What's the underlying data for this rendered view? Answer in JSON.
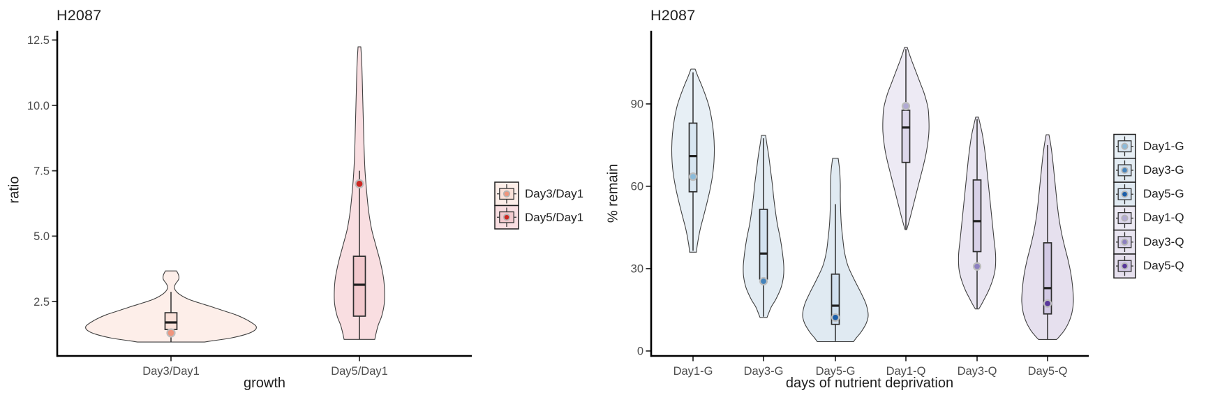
{
  "figure": {
    "background": "#ffffff",
    "axis_color": "#000000",
    "tick_color": "#333333",
    "tick_label_color": "#4d4d4d",
    "violin_stroke": "#3f3f3f",
    "box_stroke": "#2e2e2e",
    "dot_ring_color": "#bdbdbd"
  },
  "chart_data": [
    {
      "type": "violin",
      "title": "H2087",
      "xlabel": "growth",
      "ylabel": "ratio",
      "ylim": [
        0.4,
        12.9
      ],
      "ytick_values": [
        2.5,
        5.0,
        7.5,
        10.0,
        12.5
      ],
      "ytick_labels": [
        "2.5",
        "5.0",
        "7.5",
        "10.0",
        "12.5"
      ],
      "categories": [
        "Day3/Day1",
        "Day5/Day1"
      ],
      "legend_position": "right",
      "grid": false,
      "series": [
        {
          "name": "Day3/Day1",
          "fill": "#fdeee9",
          "box_fill": "#fae1d9",
          "dot_color": "#f0957d",
          "dot_value": 1.3,
          "box": {
            "q1": 1.43,
            "median": 1.7,
            "q3": 2.07
          },
          "whiskers": {
            "low": 0.95,
            "high": 2.87
          },
          "range": [
            0.95,
            3.67
          ],
          "profile": [
            [
              3.67,
              8
            ],
            [
              3.5,
              11
            ],
            [
              3.35,
              11
            ],
            [
              3.15,
              6
            ],
            [
              3.0,
              5
            ],
            [
              2.8,
              11
            ],
            [
              2.6,
              24
            ],
            [
              2.45,
              40
            ],
            [
              2.3,
              58
            ],
            [
              2.15,
              75
            ],
            [
              2.0,
              92
            ],
            [
              1.85,
              105
            ],
            [
              1.7,
              115
            ],
            [
              1.55,
              122
            ],
            [
              1.4,
              120
            ],
            [
              1.25,
              108
            ],
            [
              1.1,
              85
            ],
            [
              1.0,
              60
            ],
            [
              0.95,
              48
            ]
          ]
        },
        {
          "name": "Day5/Day1",
          "fill": "#f9dee1",
          "box_fill": "#f2c9cd",
          "dot_color": "#cc2823",
          "dot_value": 7.0,
          "box": {
            "q1": 1.94,
            "median": 3.14,
            "q3": 4.23
          },
          "whiskers": {
            "low": 1.05,
            "high": 7.5
          },
          "range": [
            1.05,
            12.24
          ],
          "profile": [
            [
              12.24,
              2
            ],
            [
              11.5,
              3.5
            ],
            [
              10.5,
              4.5
            ],
            [
              9.5,
              5.5
            ],
            [
              8.5,
              6.5
            ],
            [
              7.5,
              8
            ],
            [
              6.5,
              11
            ],
            [
              5.8,
              14
            ],
            [
              5.2,
              18
            ],
            [
              4.6,
              24
            ],
            [
              4.0,
              30
            ],
            [
              3.4,
              34.5
            ],
            [
              2.9,
              36
            ],
            [
              2.4,
              35.5
            ],
            [
              1.95,
              32
            ],
            [
              1.6,
              27
            ],
            [
              1.3,
              24
            ],
            [
              1.05,
              22
            ]
          ]
        }
      ]
    },
    {
      "type": "violin",
      "title": "H2087",
      "xlabel": "days of nutrient deprivation",
      "ylabel": "% remain",
      "ylim": [
        -2,
        116
      ],
      "ytick_values": [
        0,
        30,
        60,
        90
      ],
      "ytick_labels": [
        "0",
        "30",
        "60",
        "90"
      ],
      "categories": [
        "Day1-G",
        "Day3-G",
        "Day5-G",
        "Day1-Q",
        "Day3-Q",
        "Day5-Q"
      ],
      "legend_position": "right",
      "grid": false,
      "series": [
        {
          "name": "Day1-G",
          "fill": "#e7eff5",
          "box_fill": "#d8e6f1",
          "dot_color": "#8abbdb",
          "dot_value": 63.5,
          "box": {
            "q1": 58,
            "median": 71,
            "q3": 83
          },
          "whiskers": {
            "low": 36.5,
            "high": 101.5
          },
          "range": [
            35.8,
            102.9
          ],
          "profile": [
            [
              102.7,
              3
            ],
            [
              100,
              7
            ],
            [
              97,
              12
            ],
            [
              93,
              18
            ],
            [
              89,
              23
            ],
            [
              84,
              27
            ],
            [
              79,
              29.5
            ],
            [
              74,
              30.5
            ],
            [
              69,
              30
            ],
            [
              64,
              28
            ],
            [
              59,
              24.5
            ],
            [
              54,
              20
            ],
            [
              49,
              15
            ],
            [
              44,
              10
            ],
            [
              40,
              7
            ],
            [
              37.5,
              5.5
            ],
            [
              36,
              5
            ]
          ]
        },
        {
          "name": "Day3-G",
          "fill": "#e3ecf3",
          "box_fill": "#d3e2ef",
          "dot_color": "#4584bc",
          "dot_value": 25.4,
          "box": {
            "q1": 26.2,
            "median": 35.5,
            "q3": 51.6
          },
          "whiskers": {
            "low": 12.5,
            "high": 77.5
          },
          "range": [
            12.2,
            78.5
          ],
          "profile": [
            [
              78.5,
              3
            ],
            [
              75,
              5
            ],
            [
              71,
              7.5
            ],
            [
              66,
              10
            ],
            [
              61,
              12.5
            ],
            [
              56,
              14.5
            ],
            [
              51,
              17
            ],
            [
              46,
              20
            ],
            [
              41,
              24
            ],
            [
              36,
              27
            ],
            [
              31,
              29
            ],
            [
              27,
              28.5
            ],
            [
              23,
              25
            ],
            [
              19,
              18
            ],
            [
              16,
              11
            ],
            [
              13.5,
              7
            ],
            [
              12.2,
              5
            ]
          ]
        },
        {
          "name": "Day5-G",
          "fill": "#e0eaf2",
          "box_fill": "#d0dfee",
          "dot_color": "#1b5ea9",
          "dot_value": 12.2,
          "box": {
            "q1": 9.7,
            "median": 16.5,
            "q3": 28
          },
          "whiskers": {
            "low": 3.6,
            "high": 53.5
          },
          "range": [
            3.4,
            70.2
          ],
          "profile": [
            [
              70.2,
              4
            ],
            [
              66,
              6
            ],
            [
              61,
              7
            ],
            [
              56,
              7
            ],
            [
              51,
              7.5
            ],
            [
              46,
              8.5
            ],
            [
              41,
              10.5
            ],
            [
              36,
              13
            ],
            [
              31,
              18
            ],
            [
              26,
              27
            ],
            [
              21,
              37
            ],
            [
              17,
              44
            ],
            [
              13,
              47
            ],
            [
              10,
              44
            ],
            [
              7,
              37
            ],
            [
              4.8,
              30
            ],
            [
              3.4,
              26
            ]
          ]
        },
        {
          "name": "Day1-Q",
          "fill": "#edeaf4",
          "box_fill": "#ddd7eb",
          "dot_color": "#b1aad4",
          "dot_value": 89.2,
          "box": {
            "q1": 68.7,
            "median": 81.4,
            "q3": 87.7
          },
          "whiskers": {
            "low": 44.3,
            "high": 110
          },
          "range": [
            44.2,
            110.6
          ],
          "profile": [
            [
              110.6,
              2
            ],
            [
              108.5,
              4.5
            ],
            [
              106,
              8
            ],
            [
              103,
              12.5
            ],
            [
              100,
              17
            ],
            [
              97,
              21.5
            ],
            [
              94,
              26
            ],
            [
              91,
              29.5
            ],
            [
              88,
              32
            ],
            [
              84,
              33
            ],
            [
              80,
              33
            ],
            [
              76,
              31.5
            ],
            [
              72,
              29
            ],
            [
              68,
              25.5
            ],
            [
              64,
              21.5
            ],
            [
              60,
              17.5
            ],
            [
              56,
              13.5
            ],
            [
              52,
              9.5
            ],
            [
              48.5,
              6
            ],
            [
              45.8,
              3
            ],
            [
              44.2,
              1.2
            ]
          ]
        },
        {
          "name": "Day3-Q",
          "fill": "#e9e5f1",
          "box_fill": "#d8d1e8",
          "dot_color": "#8d80c0",
          "dot_value": 30.8,
          "box": {
            "q1": 36.2,
            "median": 47.3,
            "q3": 62.3
          },
          "whiskers": {
            "low": 15.4,
            "high": 84.5
          },
          "range": [
            15.3,
            85.2
          ],
          "profile": [
            [
              85.2,
              2
            ],
            [
              82.5,
              4.5
            ],
            [
              79,
              7.5
            ],
            [
              75,
              10
            ],
            [
              70,
              12.5
            ],
            [
              65,
              14.5
            ],
            [
              60,
              16.5
            ],
            [
              55,
              18.5
            ],
            [
              50,
              20.5
            ],
            [
              45,
              22.5
            ],
            [
              40,
              24.5
            ],
            [
              35,
              26.5
            ],
            [
              30,
              26
            ],
            [
              26,
              22.5
            ],
            [
              22,
              16.5
            ],
            [
              19,
              10.5
            ],
            [
              16.8,
              6
            ],
            [
              15.3,
              2.5
            ]
          ]
        },
        {
          "name": "Day5-Q",
          "fill": "#e6e0ee",
          "box_fill": "#d2c9e4",
          "dot_color": "#59379b",
          "dot_value": 17.3,
          "box": {
            "q1": 13.5,
            "median": 22.9,
            "q3": 39.4
          },
          "whiskers": {
            "low": 4.3,
            "high": 75
          },
          "range": [
            4.2,
            78.8
          ],
          "profile": [
            [
              78.8,
              2
            ],
            [
              76,
              4
            ],
            [
              72.5,
              6
            ],
            [
              68,
              8
            ],
            [
              63,
              10
            ],
            [
              58,
              12
            ],
            [
              53,
              14
            ],
            [
              48,
              16.5
            ],
            [
              43,
              20
            ],
            [
              38,
              24.5
            ],
            [
              33,
              29.5
            ],
            [
              28,
              33.5
            ],
            [
              23,
              36
            ],
            [
              18,
              37
            ],
            [
              14,
              35
            ],
            [
              10.5,
              30.5
            ],
            [
              7.5,
              24
            ],
            [
              5.3,
              17
            ],
            [
              4.2,
              13
            ]
          ]
        }
      ]
    }
  ]
}
